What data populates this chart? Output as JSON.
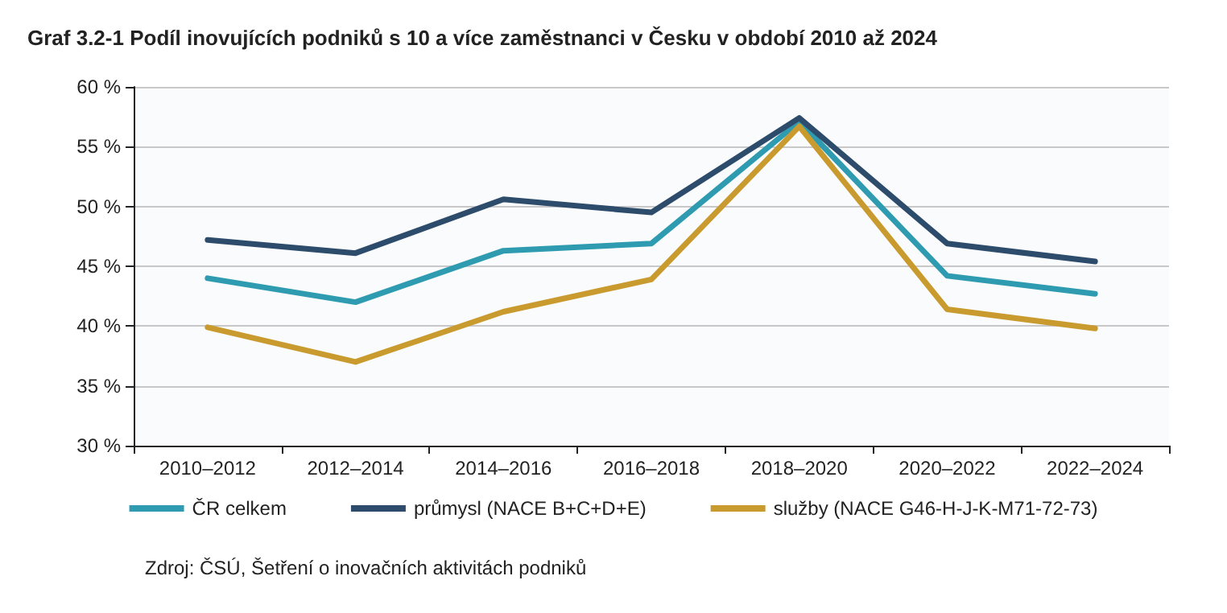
{
  "chart_data": {
    "type": "line",
    "title": "Graf 3.2-1 Podíl inovujících podniků s 10 a více zaměstnanci v Česku v období 2010 až 2024",
    "categories": [
      "2010–2012",
      "2012–2014",
      "2014–2016",
      "2016–2018",
      "2018–2020",
      "2020–2022",
      "2022–2024"
    ],
    "series": [
      {
        "name": "ČR celkem",
        "color": "#2e9bb0",
        "values": [
          44.0,
          42.0,
          46.3,
          46.9,
          57.1,
          44.2,
          42.7
        ]
      },
      {
        "name": "průmysl (NACE B+C+D+E)",
        "color": "#2d4b6b",
        "values": [
          47.2,
          46.1,
          50.6,
          49.5,
          57.4,
          46.9,
          45.4
        ]
      },
      {
        "name": "služby (NACE G46-H-J-K-M71-72-73)",
        "color": "#c99a2e",
        "values": [
          39.9,
          37.0,
          41.2,
          43.9,
          56.7,
          41.4,
          39.8
        ]
      }
    ],
    "ylim": [
      30,
      60
    ],
    "yticks": [
      {
        "value": 30,
        "label": "30 %"
      },
      {
        "value": 35,
        "label": "35 %"
      },
      {
        "value": 40,
        "label": "40 %"
      },
      {
        "value": 45,
        "label": "45 %"
      },
      {
        "value": 50,
        "label": "50 %"
      },
      {
        "value": 55,
        "label": "55 %"
      },
      {
        "value": 60,
        "label": "60 %"
      }
    ],
    "grid": "y",
    "legend": "bottom",
    "marker": "none",
    "line_style": "solid",
    "annotations": [
      "Zdroj: ČSÚ, Šetření o inovačních aktivitách podniků"
    ]
  }
}
